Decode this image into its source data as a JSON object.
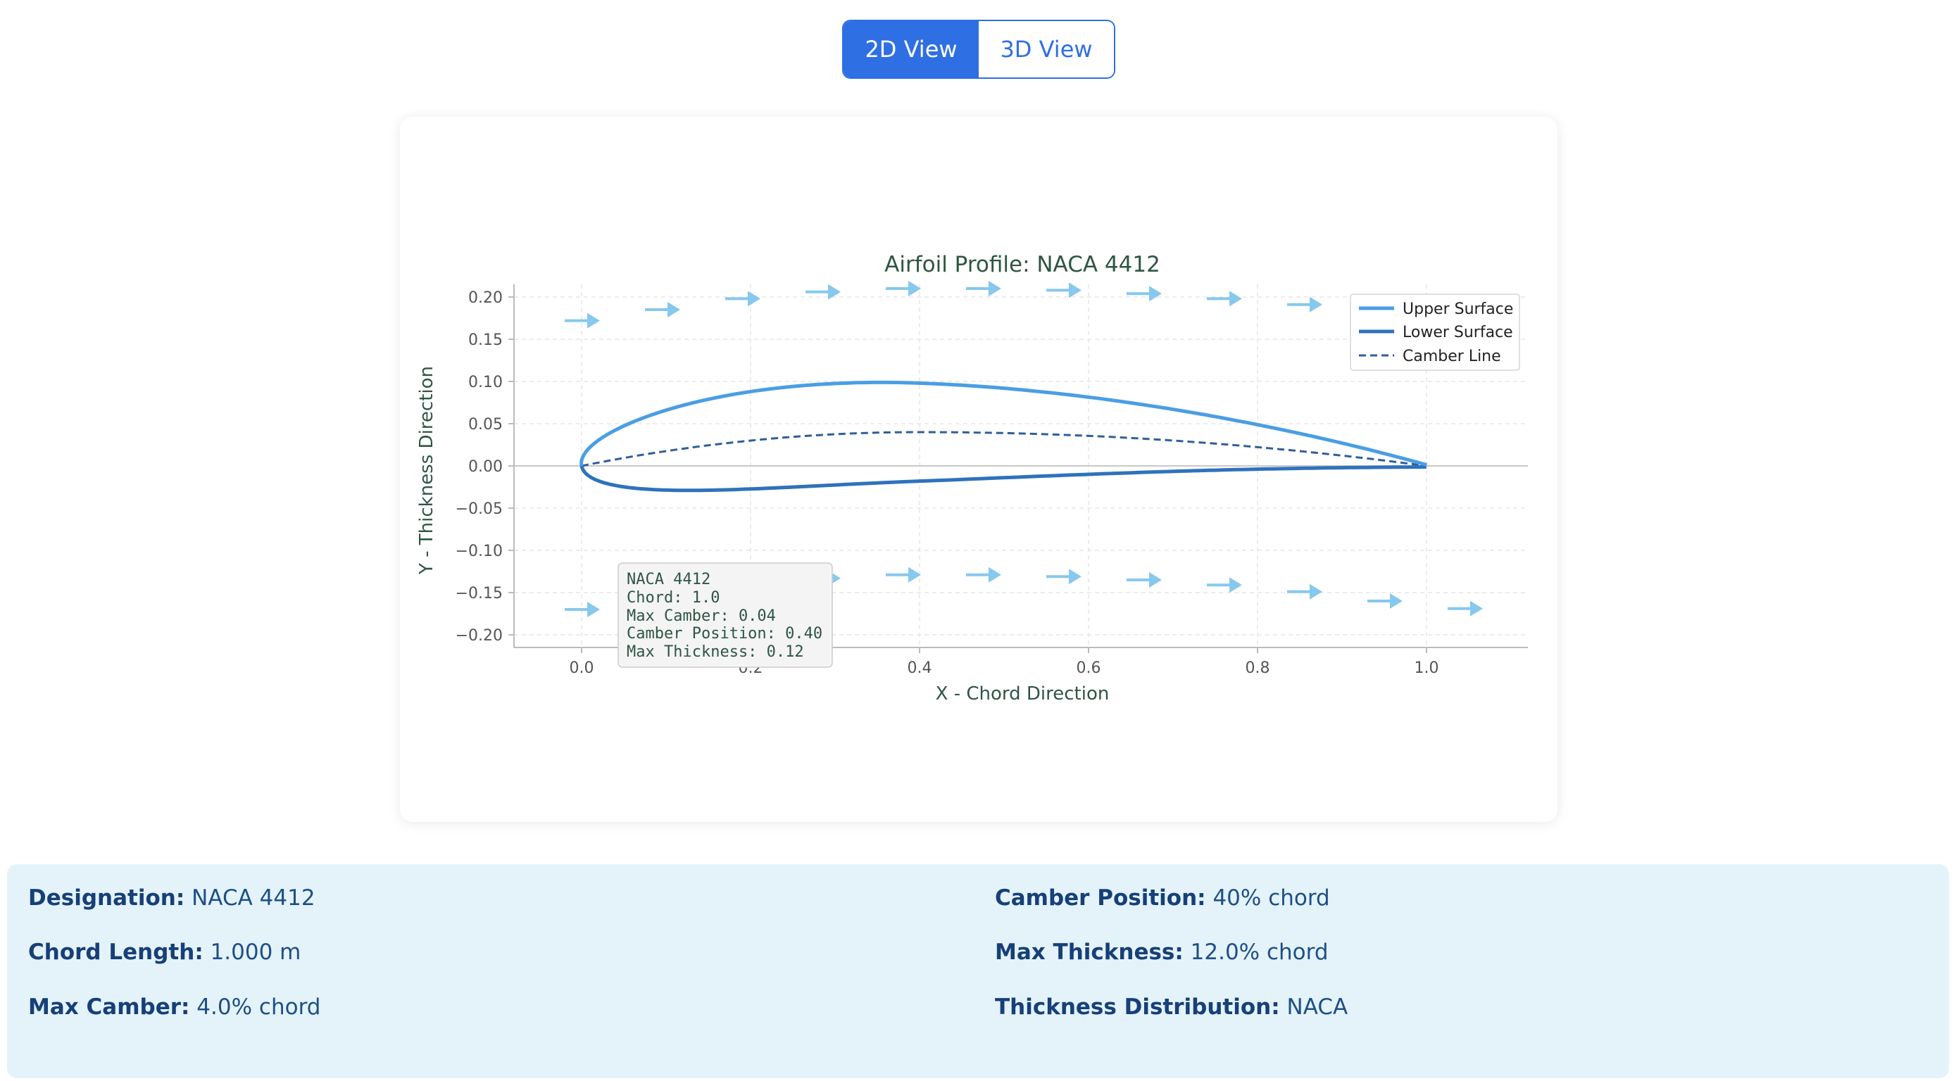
{
  "view_toggle": {
    "options": [
      "2D View",
      "3D View"
    ],
    "active": "2D View"
  },
  "chart_data": {
    "type": "line",
    "title": "Airfoil Profile: NACA 4412",
    "xlabel": "X - Chord Direction",
    "ylabel": "Y - Thickness Direction",
    "xlim": [
      -0.08,
      1.12
    ],
    "ylim": [
      -0.215,
      0.215
    ],
    "xticks": [
      0.0,
      0.2,
      0.4,
      0.6,
      0.8,
      1.0
    ],
    "xtick_labels": [
      "0.0",
      "0.2",
      "0.4",
      "0.6",
      "0.8",
      "1.0"
    ],
    "yticks": [
      0.2,
      0.15,
      0.1,
      0.05,
      0.0,
      -0.05,
      -0.1,
      -0.15,
      -0.2
    ],
    "ytick_labels": [
      "0.20",
      "0.15",
      "0.10",
      "0.05",
      "0.00",
      "−0.05",
      "−0.10",
      "−0.15",
      "−0.20"
    ],
    "grid": true,
    "legend_position": "top-right",
    "naca": {
      "m": 0.04,
      "p": 0.4,
      "t": 0.12,
      "chord": 1.0
    },
    "series": [
      {
        "name": "Upper Surface",
        "style": "solid",
        "color": "#4a9ee3"
      },
      {
        "name": "Lower Surface",
        "style": "solid",
        "color": "#2f72bd"
      },
      {
        "name": "Camber Line",
        "style": "dashed",
        "color": "#2f5f9a"
      }
    ],
    "flow_arrows_upper": [
      [
        0.0,
        0.172
      ],
      [
        0.095,
        0.185
      ],
      [
        0.19,
        0.198
      ],
      [
        0.285,
        0.206
      ],
      [
        0.38,
        0.21
      ],
      [
        0.475,
        0.21
      ],
      [
        0.57,
        0.208
      ],
      [
        0.665,
        0.204
      ],
      [
        0.76,
        0.198
      ],
      [
        0.855,
        0.191
      ]
    ],
    "flow_arrows_lower": [
      [
        0.0,
        -0.17
      ],
      [
        0.095,
        -0.15
      ],
      [
        0.19,
        -0.14
      ],
      [
        0.285,
        -0.133
      ],
      [
        0.38,
        -0.129
      ],
      [
        0.475,
        -0.129
      ],
      [
        0.57,
        -0.131
      ],
      [
        0.665,
        -0.135
      ],
      [
        0.76,
        -0.141
      ],
      [
        0.855,
        -0.149
      ],
      [
        0.95,
        -0.16
      ],
      [
        1.045,
        -0.169
      ]
    ],
    "arrow_color": "#86c8ee",
    "info_box": [
      "NACA 4412",
      "Chord: 1.0",
      "Max Camber: 0.04",
      "Camber Position: 0.40",
      "Max Thickness: 0.12"
    ],
    "colors": {
      "text": "#2f5544",
      "axis": "#bbbbbb",
      "grid": "#e6e6e6"
    }
  },
  "properties": {
    "left": [
      {
        "label": "Designation:",
        "value": "NACA 4412"
      },
      {
        "label": "Chord Length:",
        "value": "1.000 m"
      },
      {
        "label": "Max Camber:",
        "value": "4.0% chord"
      }
    ],
    "right": [
      {
        "label": "Camber Position:",
        "value": "40% chord"
      },
      {
        "label": "Max Thickness:",
        "value": "12.0% chord"
      },
      {
        "label": "Thickness Distribution:",
        "value": "NACA"
      }
    ]
  }
}
